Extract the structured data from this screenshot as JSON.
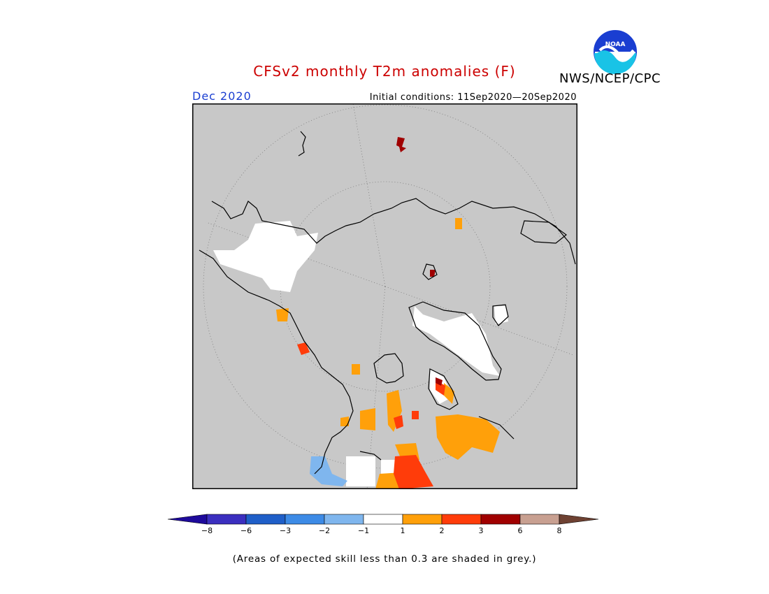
{
  "header": {
    "title": "CFSv2 monthly T2m anomalies (F)",
    "agency": "NWS/NCEP/CPC",
    "month": "Dec 2020",
    "initial_conditions": "Initial conditions: 11Sep2020—20Sep2020"
  },
  "logo": {
    "text": "NOAA",
    "icon": "noaa-logo-icon"
  },
  "colors": {
    "title": "#cc0000",
    "month": "#1a3ed1",
    "background": "#c8c8c8",
    "land_outline": "#000000"
  },
  "legend": {
    "labels": [
      "−8",
      "−6",
      "−3",
      "−2",
      "−1",
      "1",
      "2",
      "3",
      "6",
      "8"
    ],
    "colors": [
      "#1e0a9b",
      "#3b2fbf",
      "#1f5fc8",
      "#3d8be6",
      "#7fb6ee",
      "#ffffff",
      "#ffa00a",
      "#ff3c0a",
      "#a00000",
      "#c8a091",
      "#6e4132"
    ]
  },
  "footnote": "(Areas of expected skill less than 0.3 are shaded in grey.)"
}
